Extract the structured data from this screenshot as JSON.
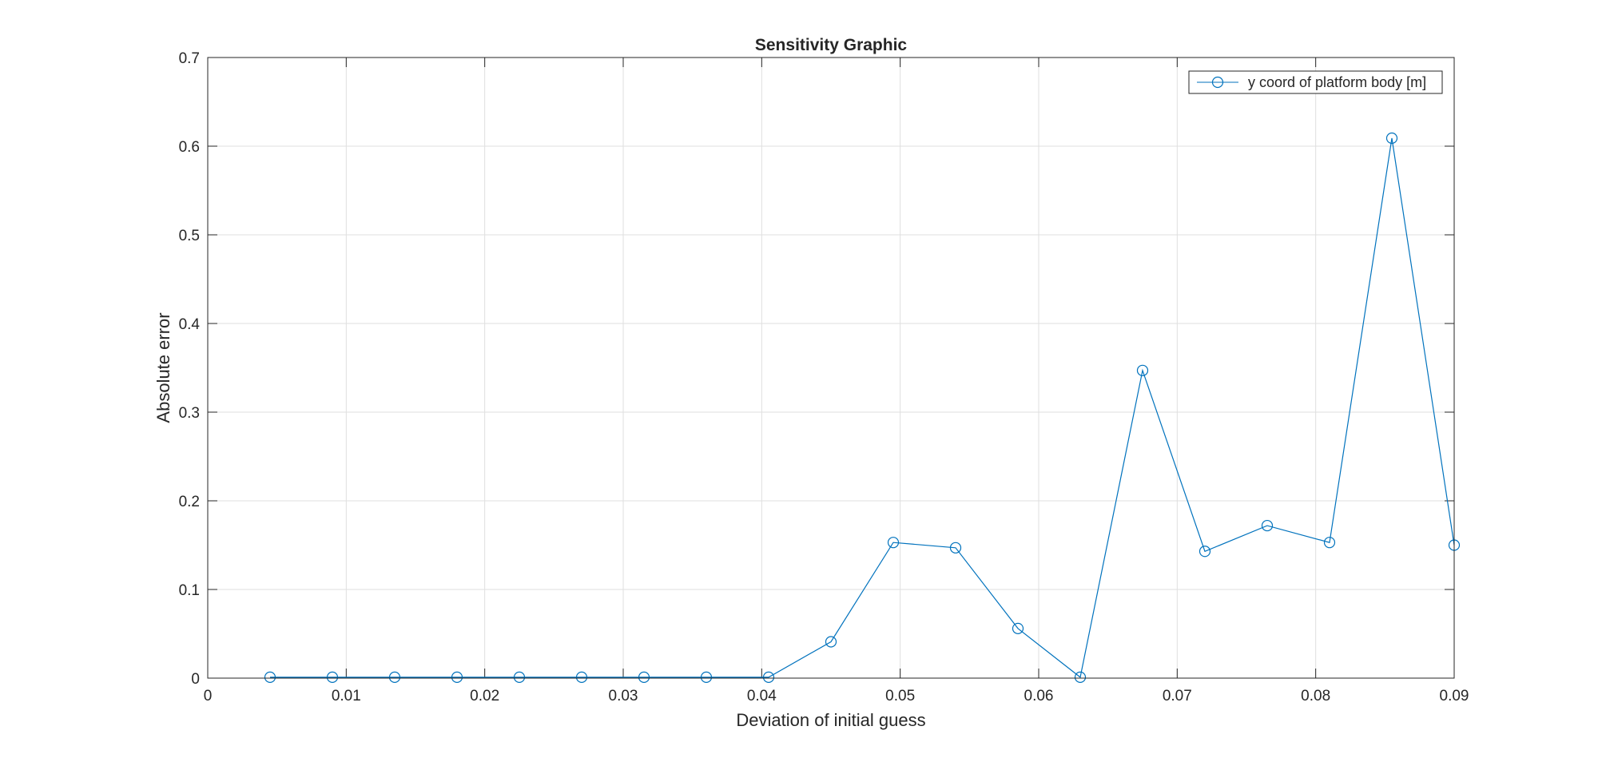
{
  "chart_data": {
    "type": "line",
    "title": "Sensitivity Graphic",
    "xlabel": "Deviation of initial guess",
    "ylabel": "Absolute error",
    "xlim": [
      0,
      0.09
    ],
    "ylim": [
      0,
      0.7
    ],
    "x_ticks": [
      "0",
      "0.01",
      "0.02",
      "0.03",
      "0.04",
      "0.05",
      "0.06",
      "0.07",
      "0.08",
      "0.09"
    ],
    "y_ticks": [
      "0",
      "0.1",
      "0.2",
      "0.3",
      "0.4",
      "0.5",
      "0.6",
      "0.7"
    ],
    "grid": true,
    "legend_position": "top-right",
    "series": [
      {
        "name": "y coord of platform body [m]",
        "color": "#0072BD",
        "marker": "circle",
        "x": [
          0.0045,
          0.009,
          0.0135,
          0.018,
          0.0225,
          0.027,
          0.0315,
          0.036,
          0.0405,
          0.045,
          0.0495,
          0.054,
          0.0585,
          0.063,
          0.0675,
          0.072,
          0.0765,
          0.081,
          0.0855,
          0.09
        ],
        "y": [
          0.001,
          0.001,
          0.001,
          0.001,
          0.001,
          0.001,
          0.001,
          0.001,
          0.001,
          0.041,
          0.153,
          0.147,
          0.056,
          0.001,
          0.347,
          0.143,
          0.172,
          0.153,
          0.609,
          0.15
        ]
      }
    ]
  }
}
